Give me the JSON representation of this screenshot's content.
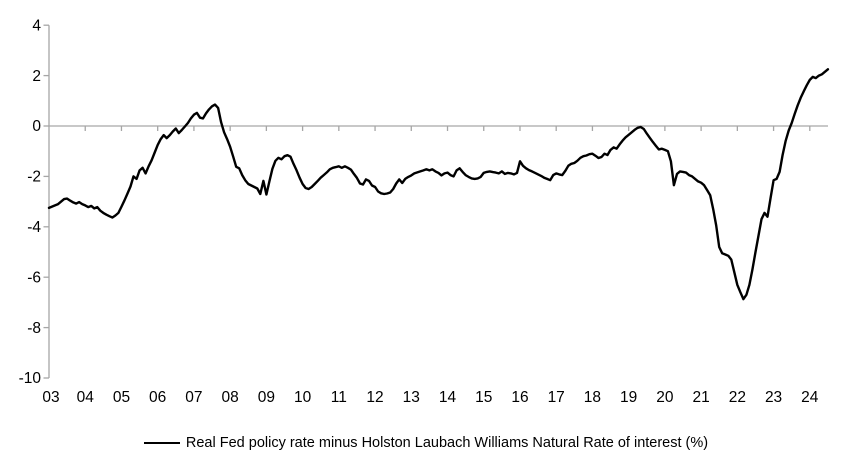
{
  "chart_data": {
    "type": "line",
    "title": "",
    "legend": "Real Fed policy rate minus Holston Laubach Williams Natural Rate of interest (%)",
    "line_color": "#000000",
    "axis_color": "#a6a6a6",
    "text_color": "#000000",
    "grid": "off",
    "legend_position": "bottom-center",
    "ylim": [
      -10,
      4
    ],
    "xlim": [
      2003,
      2024.55
    ],
    "y_ticks": [
      4,
      2,
      0,
      -2,
      -4,
      -6,
      -8,
      -10
    ],
    "y_tick_labels": [
      "4",
      "2",
      "0",
      "-2",
      "-4",
      "-6",
      "-8",
      "-10"
    ],
    "x_tick_years": [
      2003,
      2004,
      2005,
      2006,
      2007,
      2008,
      2009,
      2010,
      2011,
      2012,
      2013,
      2014,
      2015,
      2016,
      2017,
      2018,
      2019,
      2020,
      2021,
      2022,
      2023,
      2024
    ],
    "x_tick_labels": [
      "03",
      "04",
      "05",
      "06",
      "07",
      "08",
      "09",
      "10",
      "11",
      "12",
      "13",
      "14",
      "15",
      "16",
      "17",
      "18",
      "19",
      "20",
      "21",
      "22",
      "23",
      "24"
    ],
    "x_start_year": 2003,
    "x_step_months": 1,
    "series": [
      {
        "name": "Real Fed policy rate minus Holston Laubach Williams Natural Rate of interest (%)",
        "values": [
          -3.25,
          -3.2,
          -3.15,
          -3.1,
          -3.0,
          -2.9,
          -2.88,
          -2.96,
          -3.03,
          -3.08,
          -3.02,
          -3.1,
          -3.15,
          -3.22,
          -3.17,
          -3.27,
          -3.22,
          -3.36,
          -3.45,
          -3.52,
          -3.58,
          -3.63,
          -3.55,
          -3.45,
          -3.2,
          -2.95,
          -2.68,
          -2.4,
          -2.0,
          -2.1,
          -1.76,
          -1.66,
          -1.88,
          -1.6,
          -1.36,
          -1.05,
          -0.75,
          -0.52,
          -0.36,
          -0.48,
          -0.36,
          -0.22,
          -0.1,
          -0.28,
          -0.16,
          -0.02,
          0.12,
          0.3,
          0.45,
          0.52,
          0.33,
          0.3,
          0.5,
          0.66,
          0.78,
          0.85,
          0.72,
          0.15,
          -0.25,
          -0.52,
          -0.82,
          -1.22,
          -1.62,
          -1.68,
          -1.95,
          -2.15,
          -2.3,
          -2.36,
          -2.42,
          -2.48,
          -2.7,
          -2.18,
          -2.72,
          -2.2,
          -1.7,
          -1.38,
          -1.26,
          -1.32,
          -1.2,
          -1.16,
          -1.22,
          -1.5,
          -1.76,
          -2.05,
          -2.3,
          -2.46,
          -2.5,
          -2.42,
          -2.3,
          -2.18,
          -2.05,
          -1.95,
          -1.84,
          -1.72,
          -1.66,
          -1.63,
          -1.6,
          -1.66,
          -1.6,
          -1.66,
          -1.73,
          -1.9,
          -2.06,
          -2.28,
          -2.32,
          -2.12,
          -2.18,
          -2.36,
          -2.42,
          -2.6,
          -2.67,
          -2.7,
          -2.68,
          -2.64,
          -2.5,
          -2.28,
          -2.12,
          -2.26,
          -2.1,
          -2.02,
          -1.96,
          -1.88,
          -1.84,
          -1.8,
          -1.76,
          -1.72,
          -1.76,
          -1.72,
          -1.8,
          -1.86,
          -1.96,
          -1.88,
          -1.85,
          -1.95,
          -2.0,
          -1.76,
          -1.68,
          -1.82,
          -1.95,
          -2.02,
          -2.08,
          -2.1,
          -2.08,
          -2.02,
          -1.86,
          -1.82,
          -1.8,
          -1.83,
          -1.85,
          -1.88,
          -1.8,
          -1.9,
          -1.86,
          -1.88,
          -1.92,
          -1.86,
          -1.4,
          -1.58,
          -1.68,
          -1.75,
          -1.8,
          -1.86,
          -1.92,
          -1.98,
          -2.05,
          -2.1,
          -2.15,
          -1.95,
          -1.88,
          -1.92,
          -1.95,
          -1.78,
          -1.58,
          -1.5,
          -1.47,
          -1.38,
          -1.26,
          -1.2,
          -1.17,
          -1.12,
          -1.1,
          -1.18,
          -1.27,
          -1.23,
          -1.1,
          -1.15,
          -0.95,
          -0.85,
          -0.9,
          -0.73,
          -0.58,
          -0.45,
          -0.35,
          -0.25,
          -0.15,
          -0.07,
          -0.04,
          -0.12,
          -0.3,
          -0.47,
          -0.63,
          -0.78,
          -0.93,
          -0.9,
          -0.95,
          -1.0,
          -1.4,
          -2.35,
          -1.9,
          -1.8,
          -1.82,
          -1.85,
          -1.95,
          -2.0,
          -2.1,
          -2.2,
          -2.25,
          -2.35,
          -2.55,
          -2.75,
          -3.3,
          -3.95,
          -4.8,
          -5.05,
          -5.1,
          -5.15,
          -5.3,
          -5.8,
          -6.3,
          -6.6,
          -6.87,
          -6.7,
          -6.3,
          -5.7,
          -5.0,
          -4.35,
          -3.7,
          -3.45,
          -3.6,
          -2.85,
          -2.15,
          -2.1,
          -1.82,
          -1.15,
          -0.6,
          -0.18,
          0.12,
          0.48,
          0.82,
          1.12,
          1.38,
          1.62,
          1.83,
          1.95,
          1.9,
          2.0,
          2.05,
          2.15,
          2.25
        ]
      }
    ]
  }
}
